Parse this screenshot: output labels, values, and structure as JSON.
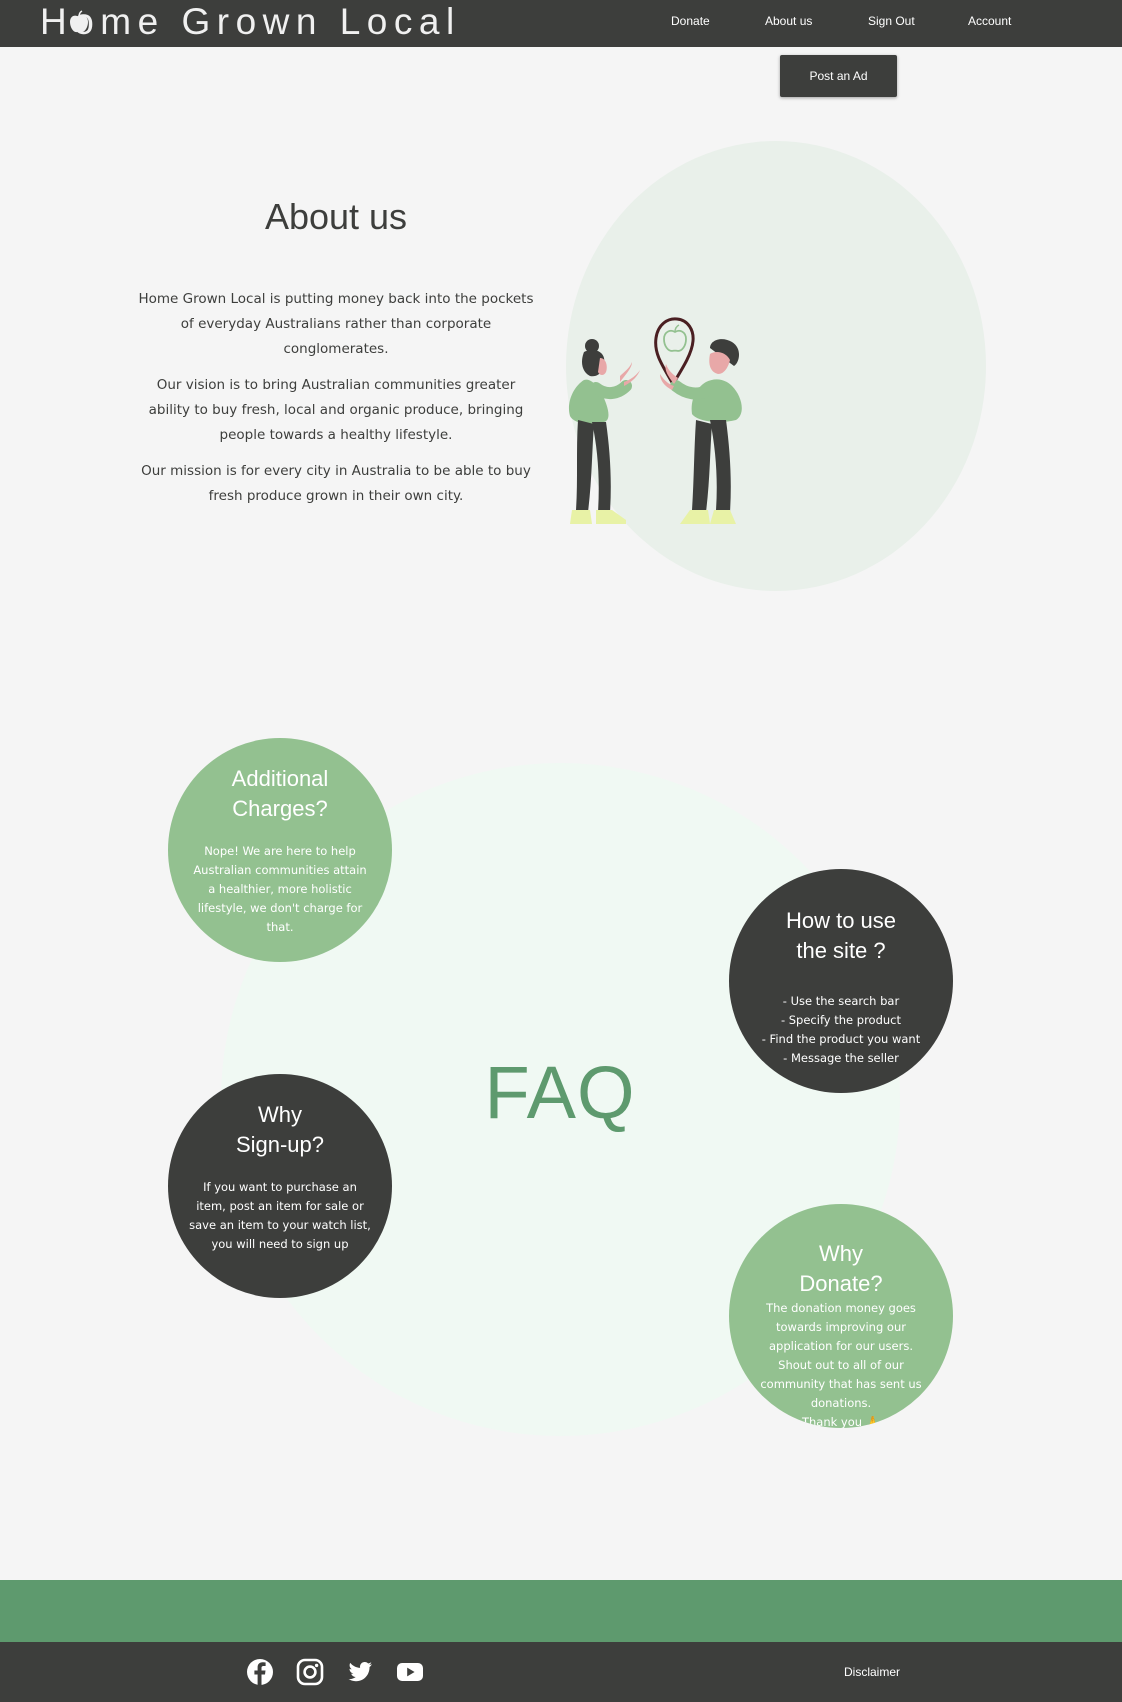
{
  "header": {
    "logo_text": "Home Grown Local",
    "nav": [
      {
        "label": "Donate"
      },
      {
        "label": "About us"
      },
      {
        "label": "Sign Out"
      },
      {
        "label": "Account"
      }
    ],
    "post_ad_label": "Post an Ad"
  },
  "about": {
    "title": "About us",
    "paragraphs": [
      "Home Grown Local is putting money back into the pockets of everyday Australians rather than corporate conglomerates.",
      "Our vision is to bring Australian communities greater ability to buy fresh, local and organic produce, bringing people towards a healthy lifestyle.",
      "Our mission is for every city in Australia to be able to buy fresh produce grown in their own city."
    ]
  },
  "faq": {
    "title": "FAQ",
    "items": [
      {
        "question": "Additional\nCharges?",
        "answer": "Nope! We are here to help\nAustralian communities attain\na healthier, more holistic\nlifestyle, we don't charge for\nthat."
      },
      {
        "question": "How to use\nthe site ?",
        "answer": "- Use the search bar\n- Specify the product\n- Find the product you want\n- Message the seller"
      },
      {
        "question": "Why\nSign-up?",
        "answer": "If you want to purchase an\nitem, post an item for sale or\nsave an item to your watch list,\nyou will need to sign up"
      },
      {
        "question": "Why\nDonate?",
        "answer": "The donation money goes\ntowards improving our\napplication for our users.\nShout out to all of our\ncommunity that has sent us\ndonations.\nThank you 🙏"
      }
    ]
  },
  "footer": {
    "social_icons": [
      "facebook-icon",
      "instagram-icon",
      "twitter-icon",
      "youtube-icon"
    ],
    "disclaimer_label": "Disclaimer"
  },
  "colors": {
    "dark": "#3d3e3c",
    "green": "#93c190",
    "deep_green": "#5e9a6e",
    "background": "#f5f5f5",
    "hero_circle": "#e9f0ea",
    "faq_circle": "#f0f9f3"
  }
}
